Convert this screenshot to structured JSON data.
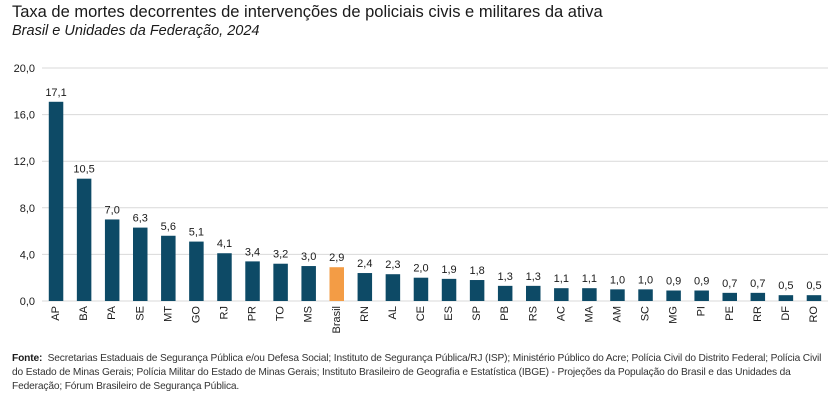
{
  "chart_data": {
    "type": "bar",
    "title": "Taxa de mortes decorrentes de intervenções de policiais civis e militares da ativa",
    "subtitle": "Brasil e Unidades da Federação, 2024",
    "categories": [
      "AP",
      "BA",
      "PA",
      "SE",
      "MT",
      "GO",
      "RJ",
      "PR",
      "TO",
      "MS",
      "Brasil",
      "RN",
      "AL",
      "CE",
      "ES",
      "SP",
      "PB",
      "RS",
      "AC",
      "MA",
      "AM",
      "SC",
      "MG",
      "PI",
      "PE",
      "RR",
      "DF",
      "RO"
    ],
    "values": [
      17.1,
      10.5,
      7.0,
      6.3,
      5.6,
      5.1,
      4.1,
      3.4,
      3.2,
      3.0,
      2.9,
      2.4,
      2.3,
      2.0,
      1.9,
      1.8,
      1.3,
      1.3,
      1.1,
      1.1,
      1.0,
      1.0,
      0.9,
      0.9,
      0.7,
      0.7,
      0.5,
      0.5
    ],
    "value_labels": [
      "17,1",
      "10,5",
      "7,0",
      "6,3",
      "5,6",
      "5,1",
      "4,1",
      "3,4",
      "3,2",
      "3,0",
      "2,9",
      "2,4",
      "2,3",
      "2,0",
      "1,9",
      "1,8",
      "1,3",
      "1,3",
      "1,1",
      "1,1",
      "1,0",
      "1,0",
      "0,9",
      "0,9",
      "0,7",
      "0,7",
      "0,5",
      "0,5"
    ],
    "ylim": [
      0,
      20
    ],
    "yticks": [
      0,
      4,
      8,
      12,
      16,
      20
    ],
    "ytick_labels": [
      "0,0",
      "4,0",
      "8,0",
      "12,0",
      "16,0",
      "20,0"
    ],
    "grid": true,
    "highlight_category": "Brasil",
    "colors": {
      "bar": "#0d4a66",
      "highlight": "#f39c45",
      "grid": "#d9d9d9"
    }
  },
  "footnote": {
    "label": "Fonte:",
    "text": "Secretarias Estaduais de Segurança Pública e/ou Defesa Social; Instituto de Segurança Pública/RJ (ISP); Ministério Público do Acre; Polícia Civil do Distrito Federal; Polícia Civil do Estado de Minas Gerais; Polícia Militar do Estado de Minas Gerais; Instituto Brasileiro de Geografia e Estatística (IBGE) - Projeções da População do Brasil e das Unidades da Federação; Fórum Brasileiro de Segurança Pública."
  }
}
